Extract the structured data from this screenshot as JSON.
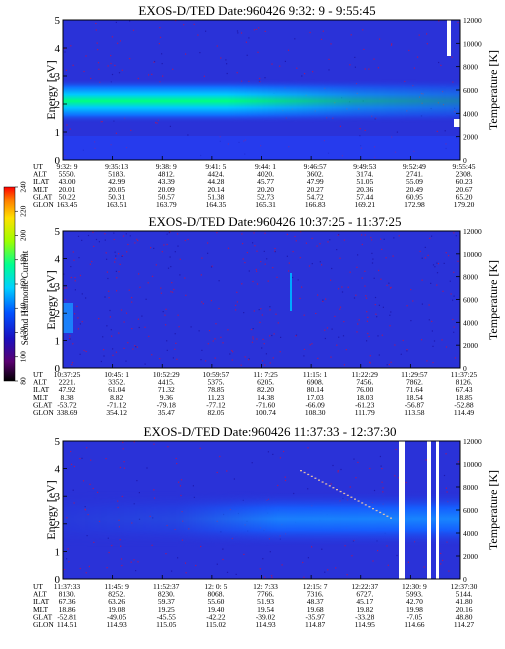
{
  "chart_data": [
    {
      "type": "heatmap",
      "title": "EXOS-D/TED   Date:960426  9:32: 9 - 9:55:45",
      "ylabel": "Energy [eV]",
      "y2label": "Temperature [K]",
      "ylim": [
        0,
        5
      ],
      "yticks": [
        "0",
        "1",
        "2",
        "3",
        "4",
        "5"
      ],
      "y2lim": [
        0,
        12000
      ],
      "y2ticks": [
        "0",
        "2000",
        "4000",
        "6000",
        "8000",
        "10000",
        "12000"
      ],
      "grid": false,
      "band": {
        "center": 2.0,
        "upper": 2.75,
        "lower": 1.25
      },
      "ephemeris": [
        {
          "label": "UT",
          "values": [
            "9:32: 9",
            "9:35:13",
            "9:38: 9",
            "9:41: 5",
            "9:44: 1",
            "9:46:57",
            "9:49:53",
            "9:52:49",
            "9:55:45"
          ]
        },
        {
          "label": "ALT",
          "values": [
            "5550.",
            "5183.",
            "4812.",
            "4424.",
            "4020.",
            "3602.",
            "3174.",
            "2741.",
            "2308."
          ]
        },
        {
          "label": "ILAT",
          "values": [
            "43.00",
            "42.99",
            "43.39",
            "44.28",
            "45.77",
            "47.99",
            "51.05",
            "55.09",
            "60.23"
          ]
        },
        {
          "label": "MLT",
          "values": [
            "20.01",
            "20.05",
            "20.09",
            "20.14",
            "20.20",
            "20.27",
            "20.36",
            "20.49",
            "20.67"
          ]
        },
        {
          "label": "GLAT",
          "values": [
            "50.22",
            "50.31",
            "50.57",
            "51.38",
            "52.73",
            "54.72",
            "57.44",
            "60.95",
            "65.20"
          ]
        },
        {
          "label": "GLON",
          "values": [
            "163.45",
            "163.51",
            "163.79",
            "164.35",
            "165.31",
            "166.83",
            "169.21",
            "172.98",
            "179.20"
          ]
        }
      ]
    },
    {
      "type": "heatmap",
      "title": "EXOS-D/TED   Date:960426  10:37:25 - 11:37:25",
      "ylabel": "Energy [eV]",
      "y2label": "Temperature [K]",
      "ylim": [
        0,
        5
      ],
      "yticks": [
        "0",
        "1",
        "2",
        "3",
        "4",
        "5"
      ],
      "y2lim": [
        0,
        12000
      ],
      "y2ticks": [
        "0",
        "2000",
        "4000",
        "6000",
        "8000",
        "10000",
        "12000"
      ],
      "grid": false,
      "ephemeris": [
        {
          "label": "UT",
          "values": [
            "10:37:25",
            "10:45: 1",
            "10:52:29",
            "10:59:57",
            "11: 7:25",
            "11:15: 1",
            "11:22:29",
            "11:29:57",
            "11:37:25"
          ]
        },
        {
          "label": "ALT",
          "values": [
            "2221.",
            "3352.",
            "4415.",
            "5375.",
            "6205.",
            "6908.",
            "7456.",
            "7862.",
            "8126."
          ]
        },
        {
          "label": "ILAT",
          "values": [
            "47.92",
            "61.04",
            "71.32",
            "78.85",
            "82.20",
            "80.14",
            "76.00",
            "71.64",
            "67.43"
          ]
        },
        {
          "label": "MLT",
          "values": [
            "8.38",
            "8.82",
            "9.36",
            "11.23",
            "14.38",
            "17.03",
            "18.03",
            "18.54",
            "18.85"
          ]
        },
        {
          "label": "GLAT",
          "values": [
            "-53.72",
            "-71.12",
            "-79.18",
            "-77.12",
            "-71.60",
            "-66.09",
            "-61.23",
            "-56.87",
            "-52.88"
          ]
        },
        {
          "label": "GLON",
          "values": [
            "338.69",
            "354.12",
            "35.47",
            "82.05",
            "100.74",
            "108.30",
            "111.79",
            "113.58",
            "114.49"
          ]
        }
      ]
    },
    {
      "type": "heatmap",
      "title": "EXOS-D/TED   Date:960426  11:37:33 - 12:37:30",
      "ylabel": "Energy [eV]",
      "y2label": "Temperature [K]",
      "ylim": [
        0,
        5
      ],
      "yticks": [
        "0",
        "1",
        "2",
        "3",
        "4",
        "5"
      ],
      "y2lim": [
        0,
        12000
      ],
      "y2ticks": [
        "0",
        "2000",
        "4000",
        "6000",
        "8000",
        "10000",
        "12000"
      ],
      "grid": false,
      "band": {
        "center": 2.0,
        "upper": 2.7,
        "lower": 1.3
      },
      "ephemeris": [
        {
          "label": "UT",
          "values": [
            "11:37:33",
            "11:45: 9",
            "11:52:37",
            "12: 0: 5",
            "12: 7:33",
            "12:15: 7",
            "12:22:37",
            "12:30: 9",
            "12:37:30"
          ]
        },
        {
          "label": "ALT",
          "values": [
            "8130.",
            "8252.",
            "8230.",
            "8068.",
            "7766.",
            "7316.",
            "6727.",
            "5993.",
            "5144."
          ]
        },
        {
          "label": "ILAT",
          "values": [
            "67.36",
            "63.26",
            "59.37",
            "55.60",
            "51.93",
            "48.37",
            "45.17",
            "42.70",
            "41.80"
          ]
        },
        {
          "label": "MLT",
          "values": [
            "18.86",
            "19.08",
            "19.25",
            "19.40",
            "19.54",
            "19.68",
            "19.82",
            "19.98",
            "20.16"
          ]
        },
        {
          "label": "GLAT",
          "values": [
            "-52.81",
            "-49.05",
            "-45.55",
            "-42.22",
            "-39.02",
            "-35.97",
            "-33.28",
            "-7.05",
            "48.80"
          ]
        },
        {
          "label": "GLON",
          "values": [
            "114.51",
            "114.93",
            "115.05",
            "115.02",
            "114.93",
            "114.87",
            "114.95",
            "114.66",
            "114.27"
          ]
        }
      ]
    }
  ],
  "colorbar": {
    "label": "Second Harmonic Current",
    "range": [
      80,
      240
    ],
    "ticks": [
      "80",
      "100",
      "120",
      "140",
      "160",
      "180",
      "200",
      "220",
      "240"
    ],
    "colors": [
      "#000000",
      "#5a0070",
      "#1a10c0",
      "#0050ff",
      "#00d0ff",
      "#00ff90",
      "#9cff00",
      "#ffe000",
      "#ff8000",
      "#ff0000"
    ]
  },
  "colors": {
    "background": "#2a32d8",
    "band_core": "#00ff80",
    "band_mid": "#00c8ff",
    "band_edge": "#1070ff",
    "noise_red": "#d01040"
  }
}
